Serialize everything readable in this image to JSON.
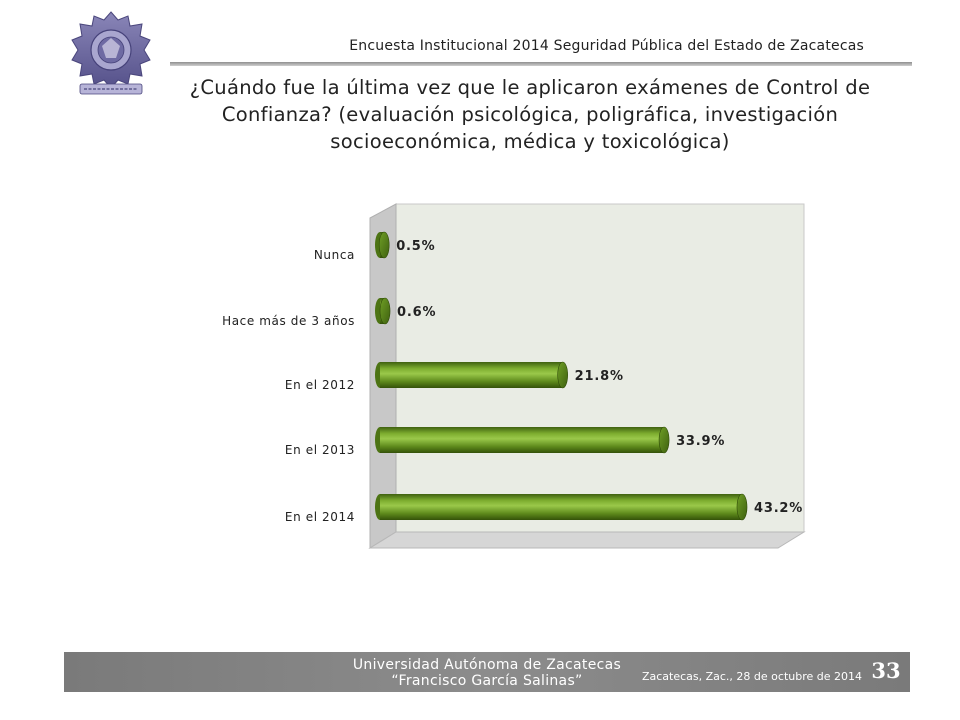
{
  "header": {
    "title": "Encuesta Institucional 2014 Seguridad Pública del Estado de Zacatecas"
  },
  "question": {
    "line1": "¿Cuándo fue la última vez que le aplicaron exámenes de Control de",
    "line2": "Confianza? (evaluación psicológica, poligráfica, investigación",
    "line3": "socioeconómica, médica y toxicológica)"
  },
  "logo": {
    "icon": "university-seal-icon"
  },
  "colors": {
    "bar": "#5e8a1c",
    "bar_light": "#8cbb3c",
    "bar_dark": "#3f6110",
    "wall": "#e9ece4",
    "side_wall": "#c8c8c8"
  },
  "chart_data": {
    "type": "bar",
    "orientation": "horizontal",
    "style": "3d-cylinder",
    "categories": [
      "Nunca",
      "Hace más de 3 años",
      "En el 2012",
      "En el 2013",
      "En el 2014"
    ],
    "values": [
      0.5,
      0.6,
      21.8,
      33.9,
      43.2
    ],
    "value_labels": [
      "0.5%",
      "0.6%",
      "21.8%",
      "33.9%",
      "43.2%"
    ],
    "unit": "%",
    "xlim": [
      0,
      50
    ],
    "grid": false,
    "legend": "none"
  },
  "footer": {
    "university": "Universidad Autónoma de Zacatecas",
    "name": "“Francisco García Salinas”",
    "date": "Zacatecas, Zac., 28 de octubre de 2014",
    "page": "33"
  }
}
